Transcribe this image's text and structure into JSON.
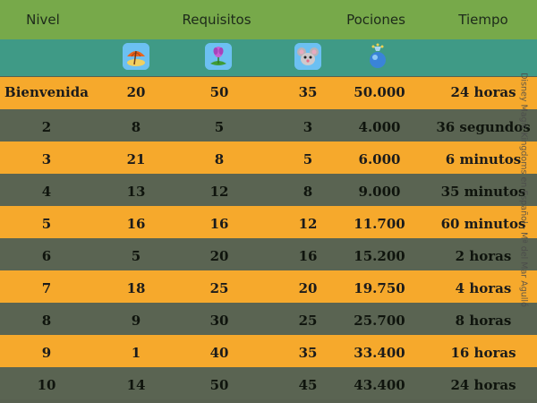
{
  "header": {
    "nivel": "Nivel",
    "requisitos": "Requisitos",
    "pociones": "Pociones",
    "tiempo": "Tiempo"
  },
  "icons": [
    "umbrella-icon",
    "flower-icon",
    "mouse-icon",
    "potion-icon"
  ],
  "rows": [
    {
      "nivel": "Bienvenida",
      "r1": "20",
      "r2": "50",
      "r3": "35",
      "pociones": "50.000",
      "tiempo": "24 horas"
    },
    {
      "nivel": "2",
      "r1": "8",
      "r2": "5",
      "r3": "3",
      "pociones": "4.000",
      "tiempo": "36 segundos"
    },
    {
      "nivel": "3",
      "r1": "21",
      "r2": "8",
      "r3": "5",
      "pociones": "6.000",
      "tiempo": "6 minutos"
    },
    {
      "nivel": "4",
      "r1": "13",
      "r2": "12",
      "r3": "8",
      "pociones": "9.000",
      "tiempo": "35 minutos"
    },
    {
      "nivel": "5",
      "r1": "16",
      "r2": "16",
      "r3": "12",
      "pociones": "11.700",
      "tiempo": "60 minutos"
    },
    {
      "nivel": "6",
      "r1": "5",
      "r2": "20",
      "r3": "16",
      "pociones": "15.200",
      "tiempo": "2 horas"
    },
    {
      "nivel": "7",
      "r1": "18",
      "r2": "25",
      "r3": "20",
      "pociones": "19.750",
      "tiempo": "4 horas"
    },
    {
      "nivel": "8",
      "r1": "9",
      "r2": "30",
      "r3": "25",
      "pociones": "25.700",
      "tiempo": "8 horas"
    },
    {
      "nivel": "9",
      "r1": "1",
      "r2": "40",
      "r3": "35",
      "pociones": "33.400",
      "tiempo": "16 horas"
    },
    {
      "nivel": "10",
      "r1": "14",
      "r2": "50",
      "r3": "45",
      "pociones": "43.400",
      "tiempo": "24 horas"
    }
  ],
  "watermark": "Disney Magic Kingdoms en Español - Mª del Mar Agulló",
  "colors": {
    "header": "#77a94a",
    "iconbar": "#3f9a86",
    "orange": "#f6a92c",
    "gray": "#5a6452"
  }
}
